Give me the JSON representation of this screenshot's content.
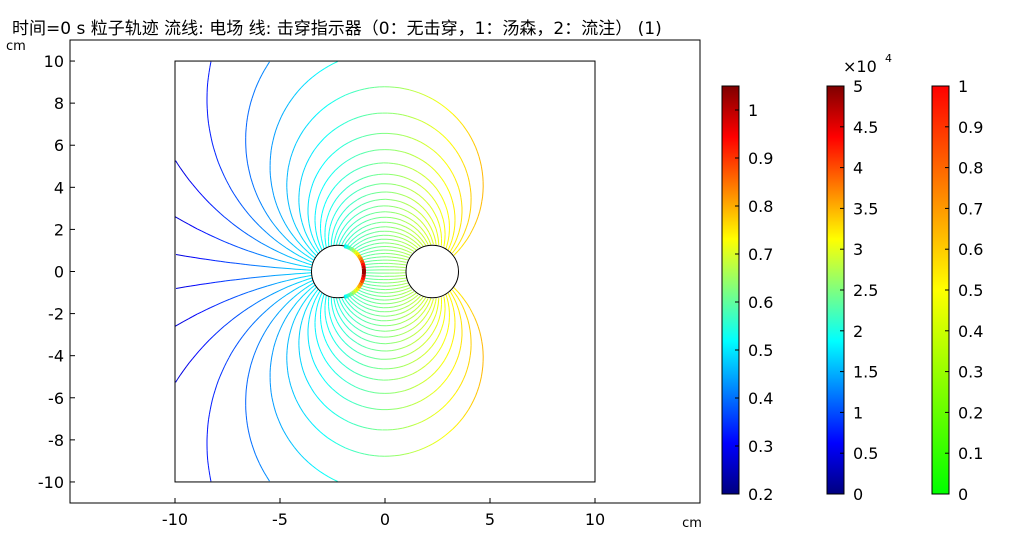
{
  "title": "时间=0 s 粒子轨迹  流线: 电场  线: 击穿指示器（0：无击穿，1：汤森，2：流注） (1)",
  "chart_data": {
    "type": "streamline",
    "x_unit": "cm",
    "y_unit": "cm",
    "xlim": [
      -15,
      15
    ],
    "ylim": [
      -11,
      11
    ],
    "x_ticks": [
      -10,
      -5,
      0,
      5,
      10
    ],
    "y_ticks": [
      -10,
      -8,
      -6,
      -4,
      -2,
      0,
      2,
      4,
      6,
      8,
      10
    ],
    "domain_box": {
      "x": [
        -10,
        10
      ],
      "y": [
        -10,
        10
      ]
    },
    "electrodes": [
      {
        "name": "left",
        "center": [
          -2.25,
          0
        ],
        "radius": 1.25
      },
      {
        "name": "right",
        "center": [
          2.25,
          0
        ],
        "radius": 1.25
      }
    ],
    "colorbars": [
      {
        "ticks": [
          0.2,
          0.3,
          0.4,
          0.5,
          0.6,
          0.7,
          0.8,
          0.9,
          1
        ],
        "range": [
          0.2,
          1.05
        ],
        "colormap": "rainbow",
        "multiplier": ""
      },
      {
        "ticks": [
          0,
          0.5,
          1,
          1.5,
          2,
          2.5,
          3,
          3.5,
          4,
          4.5,
          5
        ],
        "range": [
          0,
          5
        ],
        "colormap": "rainbow",
        "multiplier": "×10",
        "multiplier_exp": "4"
      },
      {
        "ticks": [
          0,
          0.1,
          0.2,
          0.3,
          0.4,
          0.5,
          0.6,
          0.7,
          0.8,
          0.9,
          1
        ],
        "range": [
          0,
          1
        ],
        "colormap": "traffic",
        "multiplier": ""
      }
    ],
    "colors": {
      "rainbow": [
        "#00007f",
        "#0000ff",
        "#007fff",
        "#00ffff",
        "#7fff7f",
        "#ffff00",
        "#ff7f00",
        "#ff0000",
        "#7f0000"
      ],
      "traffic": [
        "#00ff00",
        "#ffff00",
        "#ff0000"
      ],
      "plot_bg": "#ffffff",
      "axis": "#000000"
    }
  }
}
